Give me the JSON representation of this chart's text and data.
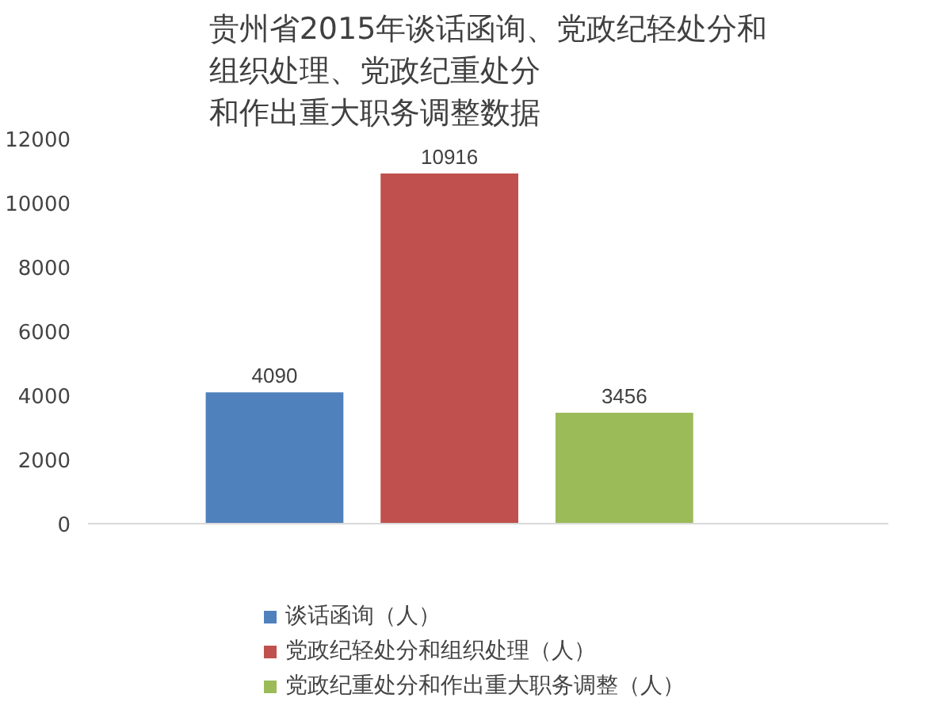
{
  "chart_data": {
    "type": "bar",
    "title": "贵州省2015年谈话函询、党政纪轻处分和组织处理、党政纪重处分和作出重大职务调整数据",
    "categories": [
      null
    ],
    "series": [
      {
        "name": "谈话函询（人）",
        "color": "#4f81bd",
        "values": [
          4090
        ]
      },
      {
        "name": "党政纪轻处分和组织处理（人）",
        "color": "#c0504d",
        "values": [
          10916
        ]
      },
      {
        "name": "党政纪重处分和作出重大职务调整（人）",
        "color": "#9bbb59",
        "values": [
          3456
        ]
      }
    ],
    "ylim": [
      0,
      12000
    ],
    "yticks": [
      0,
      2000,
      4000,
      6000,
      8000,
      10000,
      12000
    ],
    "data_labels": true,
    "legend": "bottom",
    "grid": false
  }
}
